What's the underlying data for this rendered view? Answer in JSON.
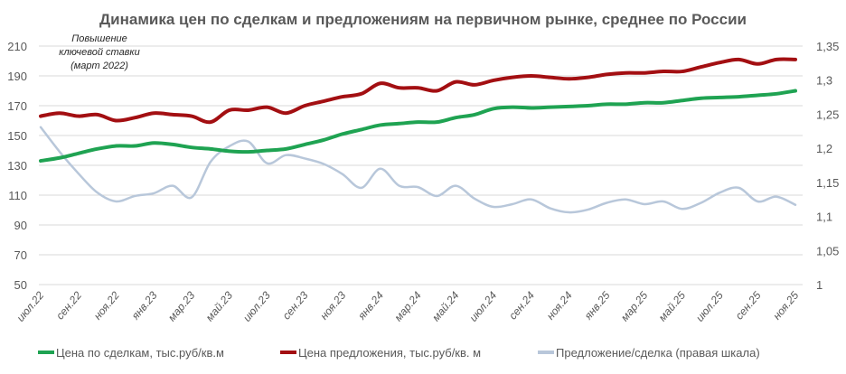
{
  "chart_data": {
    "type": "line",
    "title": "Динамика цен по сделкам и предложениям на первичном рынке, среднее по России",
    "annotation": [
      "Повышение",
      "ключевой ставки",
      "(март 2022)"
    ],
    "x_tick_labels": [
      "июл.22",
      "сен.22",
      "ноя.22",
      "янв.23",
      "мар.23",
      "май.23",
      "июл.23",
      "сен.23",
      "ноя.23",
      "янв.24",
      "мар.24",
      "май.24",
      "июл.24",
      "сен.24",
      "ноя.24",
      "янв.25",
      "мар.25",
      "май.25",
      "июл.25",
      "сен.25",
      "ноя.25"
    ],
    "points_per_tick": 2,
    "y_left": {
      "range": [
        50,
        210
      ],
      "ticks": [
        "50",
        "70",
        "90",
        "110",
        "130",
        "150",
        "170",
        "190",
        "210"
      ]
    },
    "y_right": {
      "range": [
        1,
        1.35
      ],
      "ticks": [
        "1",
        "1,05",
        "1,1",
        "1,15",
        "1,2",
        "1,25",
        "1,3",
        "1,35"
      ]
    },
    "grid": true,
    "legend_position": "bottom",
    "series": [
      {
        "name": "Цена по сделкам, тыс.руб/кв.м",
        "axis": "left",
        "color": "#1fa352",
        "values": [
          133,
          135,
          138,
          141,
          143,
          143,
          145,
          144,
          142,
          141,
          139.5,
          139,
          140,
          141,
          144,
          147,
          151,
          154,
          157,
          158,
          159,
          159,
          162,
          164,
          168,
          169,
          168.5,
          169,
          169.5,
          170,
          171,
          171,
          172,
          172,
          173.5,
          175,
          175.5,
          176,
          177,
          178,
          180
        ]
      },
      {
        "name": "Цена предложения, тыс.руб/кв. м",
        "axis": "left",
        "color": "#a30f12",
        "values": [
          163,
          165,
          163,
          164,
          160,
          162,
          165,
          164,
          163,
          159,
          167,
          167,
          169,
          165,
          170,
          173,
          176,
          178,
          185,
          182,
          182,
          180,
          186,
          184,
          187,
          189,
          190,
          189,
          188,
          189,
          191,
          192,
          192,
          193,
          193,
          196,
          199,
          201,
          198,
          201,
          201
        ]
      },
      {
        "name": "Предложение/сделка (правая шкала)",
        "axis": "right",
        "color": "#b8c7da",
        "values": [
          1.231,
          1.195,
          1.163,
          1.135,
          1.122,
          1.13,
          1.134,
          1.145,
          1.128,
          1.18,
          1.203,
          1.21,
          1.178,
          1.19,
          1.185,
          1.177,
          1.162,
          1.142,
          1.17,
          1.145,
          1.143,
          1.13,
          1.145,
          1.126,
          1.114,
          1.118,
          1.125,
          1.112,
          1.106,
          1.11,
          1.12,
          1.125,
          1.118,
          1.122,
          1.111,
          1.12,
          1.135,
          1.142,
          1.122,
          1.129,
          1.117
        ]
      }
    ]
  }
}
